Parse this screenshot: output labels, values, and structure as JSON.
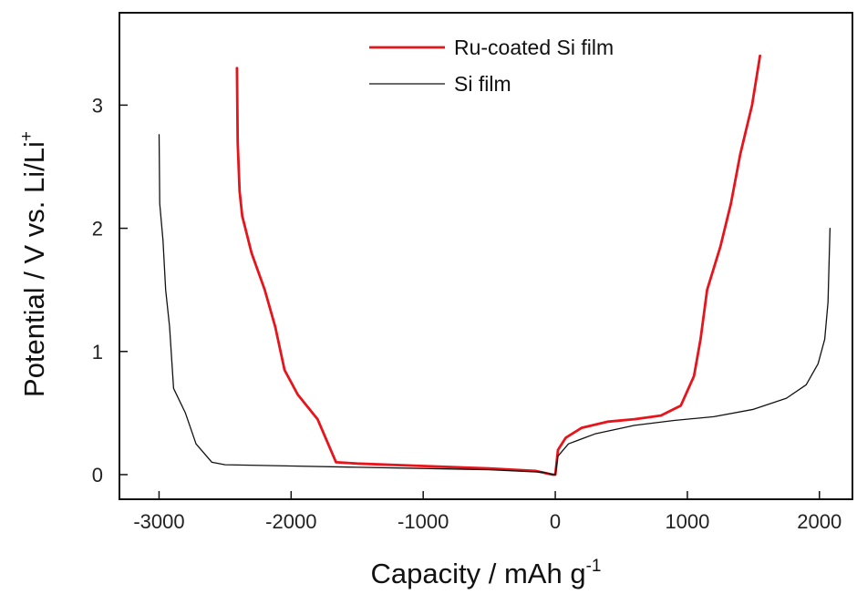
{
  "chart_data": {
    "type": "line",
    "xlabel": "Capacity / mAh g",
    "xlabel_sup": "-1",
    "ylabel": "Potential / V vs. Li/Li",
    "ylabel_sup": "+",
    "xlim": [
      -3300,
      2250
    ],
    "ylim": [
      -0.2,
      3.75
    ],
    "xticks": [
      -3000,
      -2000,
      -1000,
      0,
      1000,
      2000
    ],
    "xtick_labels": [
      "-3000",
      "-2000",
      "-1000",
      "0",
      "1000",
      "2000"
    ],
    "yticks": [
      0,
      1,
      2,
      3
    ],
    "ytick_labels": [
      "0",
      "1",
      "2",
      "3"
    ],
    "grid": false,
    "legend_position": "top-right",
    "series": [
      {
        "name": "Ru-coated Si film",
        "color": "#e8141b",
        "values": [
          [
            -2410,
            3.3
          ],
          [
            -2405,
            2.7
          ],
          [
            -2390,
            2.3
          ],
          [
            -2370,
            2.1
          ],
          [
            -2300,
            1.8
          ],
          [
            -2200,
            1.5
          ],
          [
            -2120,
            1.2
          ],
          [
            -2050,
            0.85
          ],
          [
            -1950,
            0.65
          ],
          [
            -1800,
            0.45
          ],
          [
            -1700,
            0.2
          ],
          [
            -1660,
            0.1
          ],
          [
            -1500,
            0.09
          ],
          [
            -1000,
            0.07
          ],
          [
            -500,
            0.05
          ],
          [
            -150,
            0.03
          ],
          [
            -20,
            0.0
          ],
          [
            0,
            0.0
          ],
          [
            20,
            0.2
          ],
          [
            80,
            0.3
          ],
          [
            200,
            0.38
          ],
          [
            400,
            0.43
          ],
          [
            600,
            0.45
          ],
          [
            800,
            0.48
          ],
          [
            950,
            0.56
          ],
          [
            1050,
            0.8
          ],
          [
            1100,
            1.1
          ],
          [
            1150,
            1.5
          ],
          [
            1250,
            1.85
          ],
          [
            1330,
            2.2
          ],
          [
            1400,
            2.6
          ],
          [
            1490,
            3.0
          ],
          [
            1550,
            3.4
          ]
        ]
      },
      {
        "name": "Si film",
        "color": "#111111",
        "values": [
          [
            -3000,
            2.76
          ],
          [
            -2995,
            2.2
          ],
          [
            -2970,
            1.9
          ],
          [
            -2950,
            1.5
          ],
          [
            -2920,
            1.2
          ],
          [
            -2890,
            0.7
          ],
          [
            -2800,
            0.5
          ],
          [
            -2720,
            0.25
          ],
          [
            -2600,
            0.1
          ],
          [
            -2500,
            0.08
          ],
          [
            -2000,
            0.07
          ],
          [
            -1500,
            0.06
          ],
          [
            -1000,
            0.05
          ],
          [
            -500,
            0.04
          ],
          [
            -100,
            0.02
          ],
          [
            -10,
            0.0
          ],
          [
            0,
            0.0
          ],
          [
            20,
            0.15
          ],
          [
            100,
            0.25
          ],
          [
            300,
            0.33
          ],
          [
            600,
            0.4
          ],
          [
            900,
            0.44
          ],
          [
            1200,
            0.47
          ],
          [
            1500,
            0.53
          ],
          [
            1750,
            0.62
          ],
          [
            1900,
            0.73
          ],
          [
            1990,
            0.9
          ],
          [
            2040,
            1.1
          ],
          [
            2065,
            1.4
          ],
          [
            2080,
            2.0
          ]
        ]
      }
    ]
  }
}
